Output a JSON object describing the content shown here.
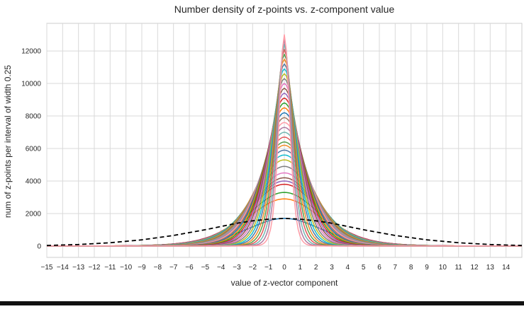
{
  "chart_data": {
    "type": "line",
    "title": "Number density of z-points vs. z-component value",
    "xlabel": "value of z-vector component",
    "ylabel": "num of z-points per interval of width 0.25",
    "xlim": [
      -15,
      15
    ],
    "ylim": [
      -700,
      13700
    ],
    "xticks": [
      -15,
      -14,
      -13,
      -12,
      -11,
      -10,
      -9,
      -8,
      -7,
      -6,
      -5,
      -4,
      -3,
      -2,
      -1,
      0,
      1,
      2,
      3,
      4,
      5,
      6,
      7,
      8,
      9,
      10,
      11,
      12,
      13,
      14
    ],
    "xtick_labels": [
      "−15",
      "−14",
      "−13",
      "−12",
      "−11",
      "−10",
      "−9",
      "−8",
      "−7",
      "−6",
      "−5",
      "−4",
      "−3",
      "−2",
      "−1",
      "0",
      "1",
      "2",
      "3",
      "4",
      "5",
      "6",
      "7",
      "8",
      "9",
      "10",
      "11",
      "12",
      "13",
      "14"
    ],
    "yticks": [
      0,
      2000,
      4000,
      6000,
      8000,
      10000,
      12000
    ],
    "ytick_labels": [
      "0",
      "2000",
      "4000",
      "6000",
      "8000",
      "10000",
      "12000"
    ],
    "grid": true,
    "series_style": "many overlapping colored curves peaked at 0 (peak heights from about 1700 to about 13000), plus one dashed black broad curve",
    "peak_heights": [
      1700,
      2900,
      3300,
      3800,
      4000,
      4200,
      4500,
      4900,
      5300,
      5600,
      5900,
      6200,
      6400,
      6700,
      7000,
      7300,
      7600,
      7900,
      8200,
      8500,
      8800,
      9100,
      9400,
      9700,
      10000,
      10300,
      10600,
      10900,
      11200,
      11500,
      11800,
      12100,
      12400,
      12700,
      13000
    ],
    "dashed_series": {
      "style": "dashed black",
      "x": [
        -15,
        -13,
        -11,
        -9,
        -7,
        -5,
        -4,
        -3,
        -2,
        -1,
        0,
        1,
        2,
        3,
        4,
        5,
        7,
        9,
        11,
        13,
        15
      ],
      "y": [
        30,
        90,
        200,
        380,
        650,
        1000,
        1200,
        1400,
        1550,
        1650,
        1700,
        1650,
        1550,
        1400,
        1200,
        1000,
        650,
        380,
        200,
        90,
        30
      ]
    },
    "palette": [
      "#1f77b4",
      "#ff7f0e",
      "#2ca02c",
      "#d62728",
      "#9467bd",
      "#8c564b",
      "#e377c2",
      "#7f7f7f",
      "#bcbd22",
      "#17becf",
      "#4e79a7",
      "#f28e2b",
      "#59a14f",
      "#e15759",
      "#76b7b2",
      "#b07aa1",
      "#ff9da7",
      "#9c755f"
    ]
  }
}
